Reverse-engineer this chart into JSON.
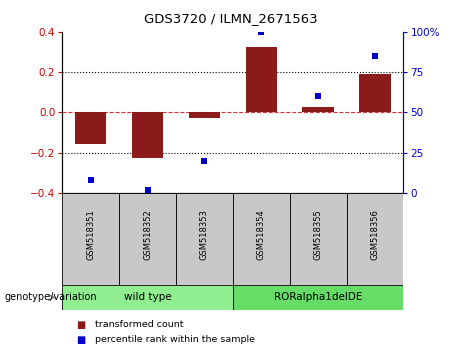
{
  "title": "GDS3720 / ILMN_2671563",
  "samples": [
    "GSM518351",
    "GSM518352",
    "GSM518353",
    "GSM518354",
    "GSM518355",
    "GSM518356"
  ],
  "bar_values": [
    -0.155,
    -0.225,
    -0.03,
    0.325,
    0.025,
    0.19
  ],
  "dot_values_pct": [
    8,
    2,
    20,
    100,
    60,
    85
  ],
  "bar_color": "#8B1A1A",
  "dot_color": "#0000CC",
  "ylim_left": [
    -0.4,
    0.4
  ],
  "ylim_right": [
    0,
    100
  ],
  "yticks_left": [
    -0.4,
    -0.2,
    0.0,
    0.2,
    0.4
  ],
  "yticks_right": [
    0,
    25,
    50,
    75,
    100
  ],
  "hlines_dotted": [
    -0.2,
    0.2
  ],
  "hline_red_dashed": 0.0,
  "wt_color": "#90EE90",
  "ror_color": "#66DD66",
  "genotype_label": "genotype/variation",
  "legend_items": [
    {
      "label": "transformed count",
      "color": "#8B1A1A"
    },
    {
      "label": "percentile rank within the sample",
      "color": "#0000CC"
    }
  ],
  "sample_bg_color": "#C8C8C8",
  "left_ax_color": "#CC0000",
  "right_ax_color": "#0000CC"
}
